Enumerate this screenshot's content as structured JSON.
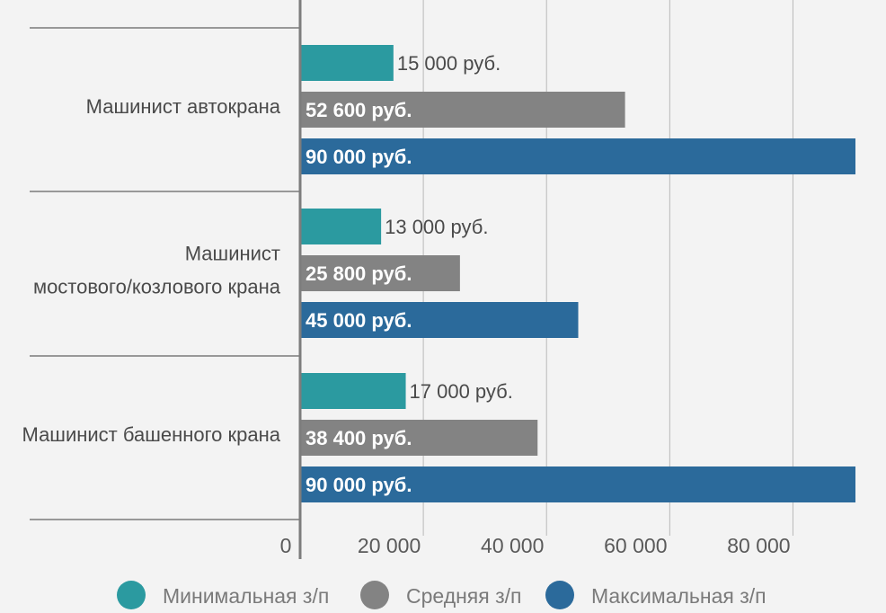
{
  "chart_data": {
    "type": "bar",
    "orientation": "horizontal",
    "categories": [
      [
        "Машинист автокрана"
      ],
      [
        "Машинист",
        "мостового/козлового крана"
      ],
      [
        "Машинист башенного крана"
      ]
    ],
    "series": [
      {
        "name": "Минимальная з/п",
        "values": [
          15000,
          13000,
          17000
        ],
        "labels": [
          "15 000 руб.",
          "13 000 руб.",
          "17 000 руб."
        ],
        "color": "#2b9aa0",
        "label_color": "#4a4a4a"
      },
      {
        "name": "Средняя з/п",
        "values": [
          52600,
          25800,
          38400
        ],
        "labels": [
          "52 600 руб.",
          "25 800 руб.",
          "38 400 руб."
        ],
        "color": "#838383",
        "label_color": "#ffffff"
      },
      {
        "name": "Максимальная з/п",
        "values": [
          90000,
          45000,
          90000
        ],
        "labels": [
          "90 000 руб.",
          "45 000 руб.",
          "90 000 руб."
        ],
        "color": "#2b6a9b",
        "label_color": "#ffffff"
      }
    ],
    "xticks": [
      0,
      20000,
      40000,
      60000,
      80000
    ],
    "xtick_labels": [
      "0",
      "20 000",
      "40 000",
      "60 000",
      "80 000"
    ],
    "xlim": [
      0,
      90000
    ],
    "grid": true,
    "legend_position": "bottom"
  }
}
